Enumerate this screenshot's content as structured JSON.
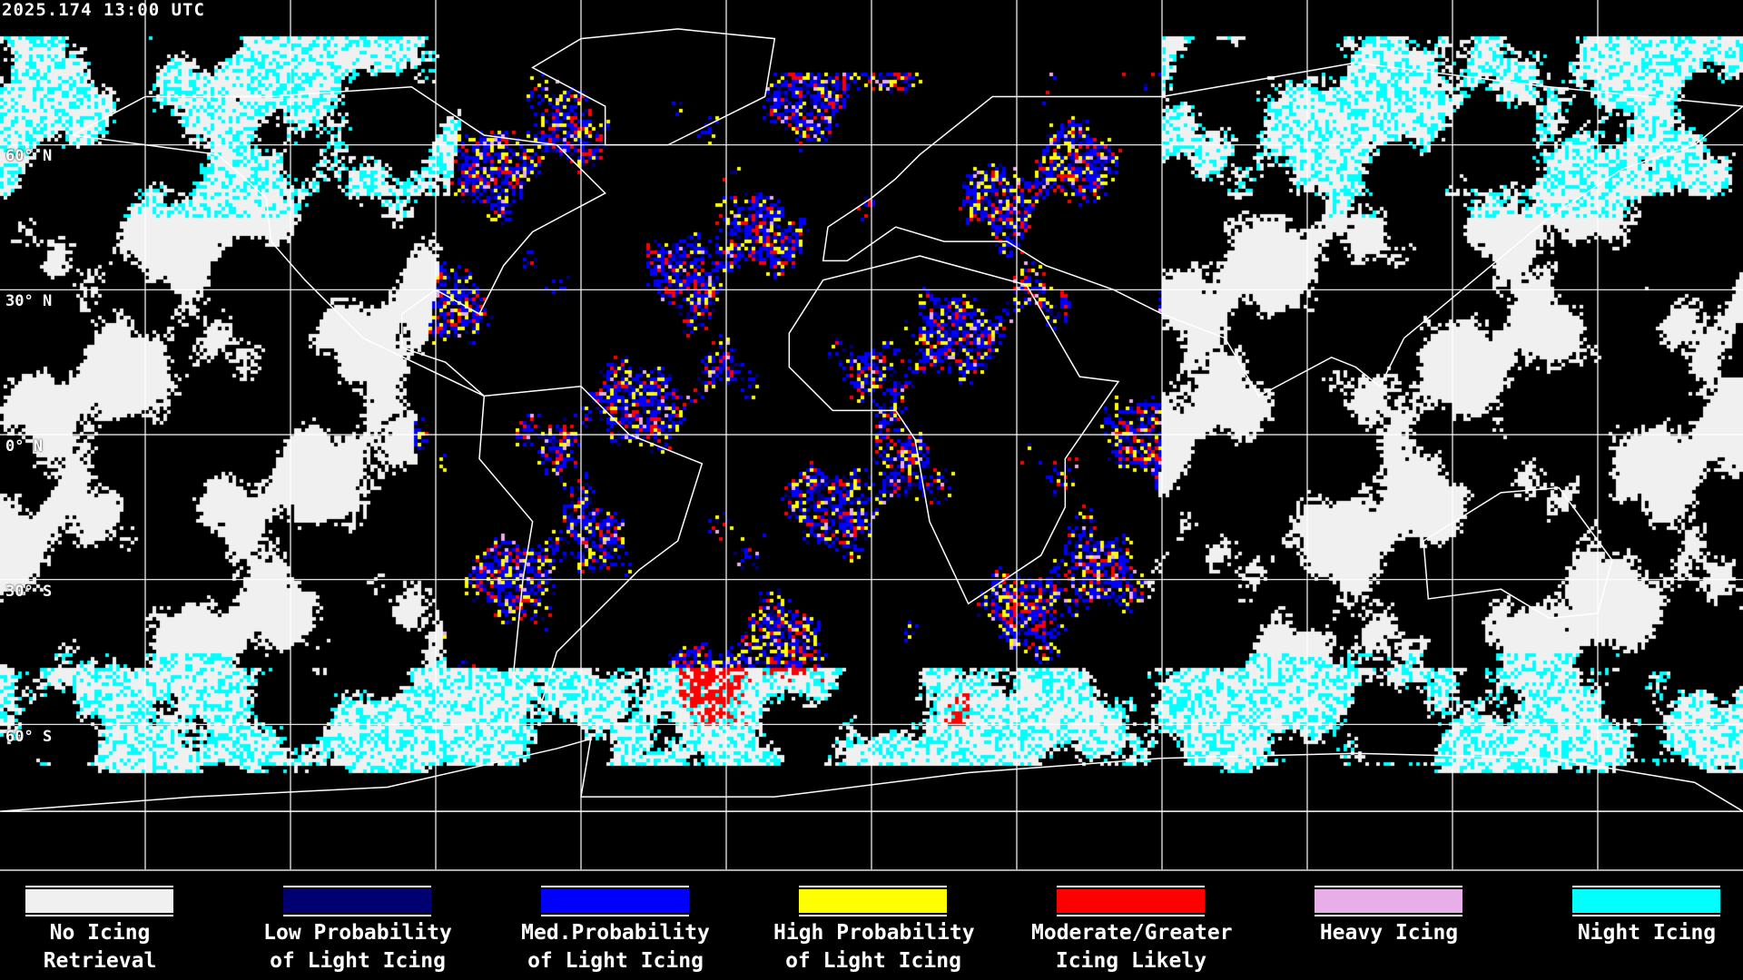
{
  "timestamp": "2025.174 13:00 UTC",
  "map": {
    "projection": "equirectangular",
    "grid_spacing_degrees": 30,
    "lat_labels": [
      "60° N",
      "30° N",
      "0° N",
      "30° S",
      "60° S"
    ]
  },
  "legend": [
    {
      "line1": "No Icing",
      "line2": "Retrieval",
      "color": "#f0f0f0"
    },
    {
      "line1": "Low Probability",
      "line2": "of Light Icing",
      "color": "#000070"
    },
    {
      "line1": "Med.Probability",
      "line2": "of Light Icing",
      "color": "#0000ff"
    },
    {
      "line1": "High Probability",
      "line2": "of Light Icing",
      "color": "#ffff00"
    },
    {
      "line1": "Moderate/Greater",
      "line2": "Icing Likely",
      "color": "#ff0000"
    },
    {
      "line1": "Heavy Icing",
      "line2": "",
      "color": "#e8aee8"
    },
    {
      "line1": "Night Icing",
      "line2": "",
      "color": "#00ffff"
    }
  ]
}
